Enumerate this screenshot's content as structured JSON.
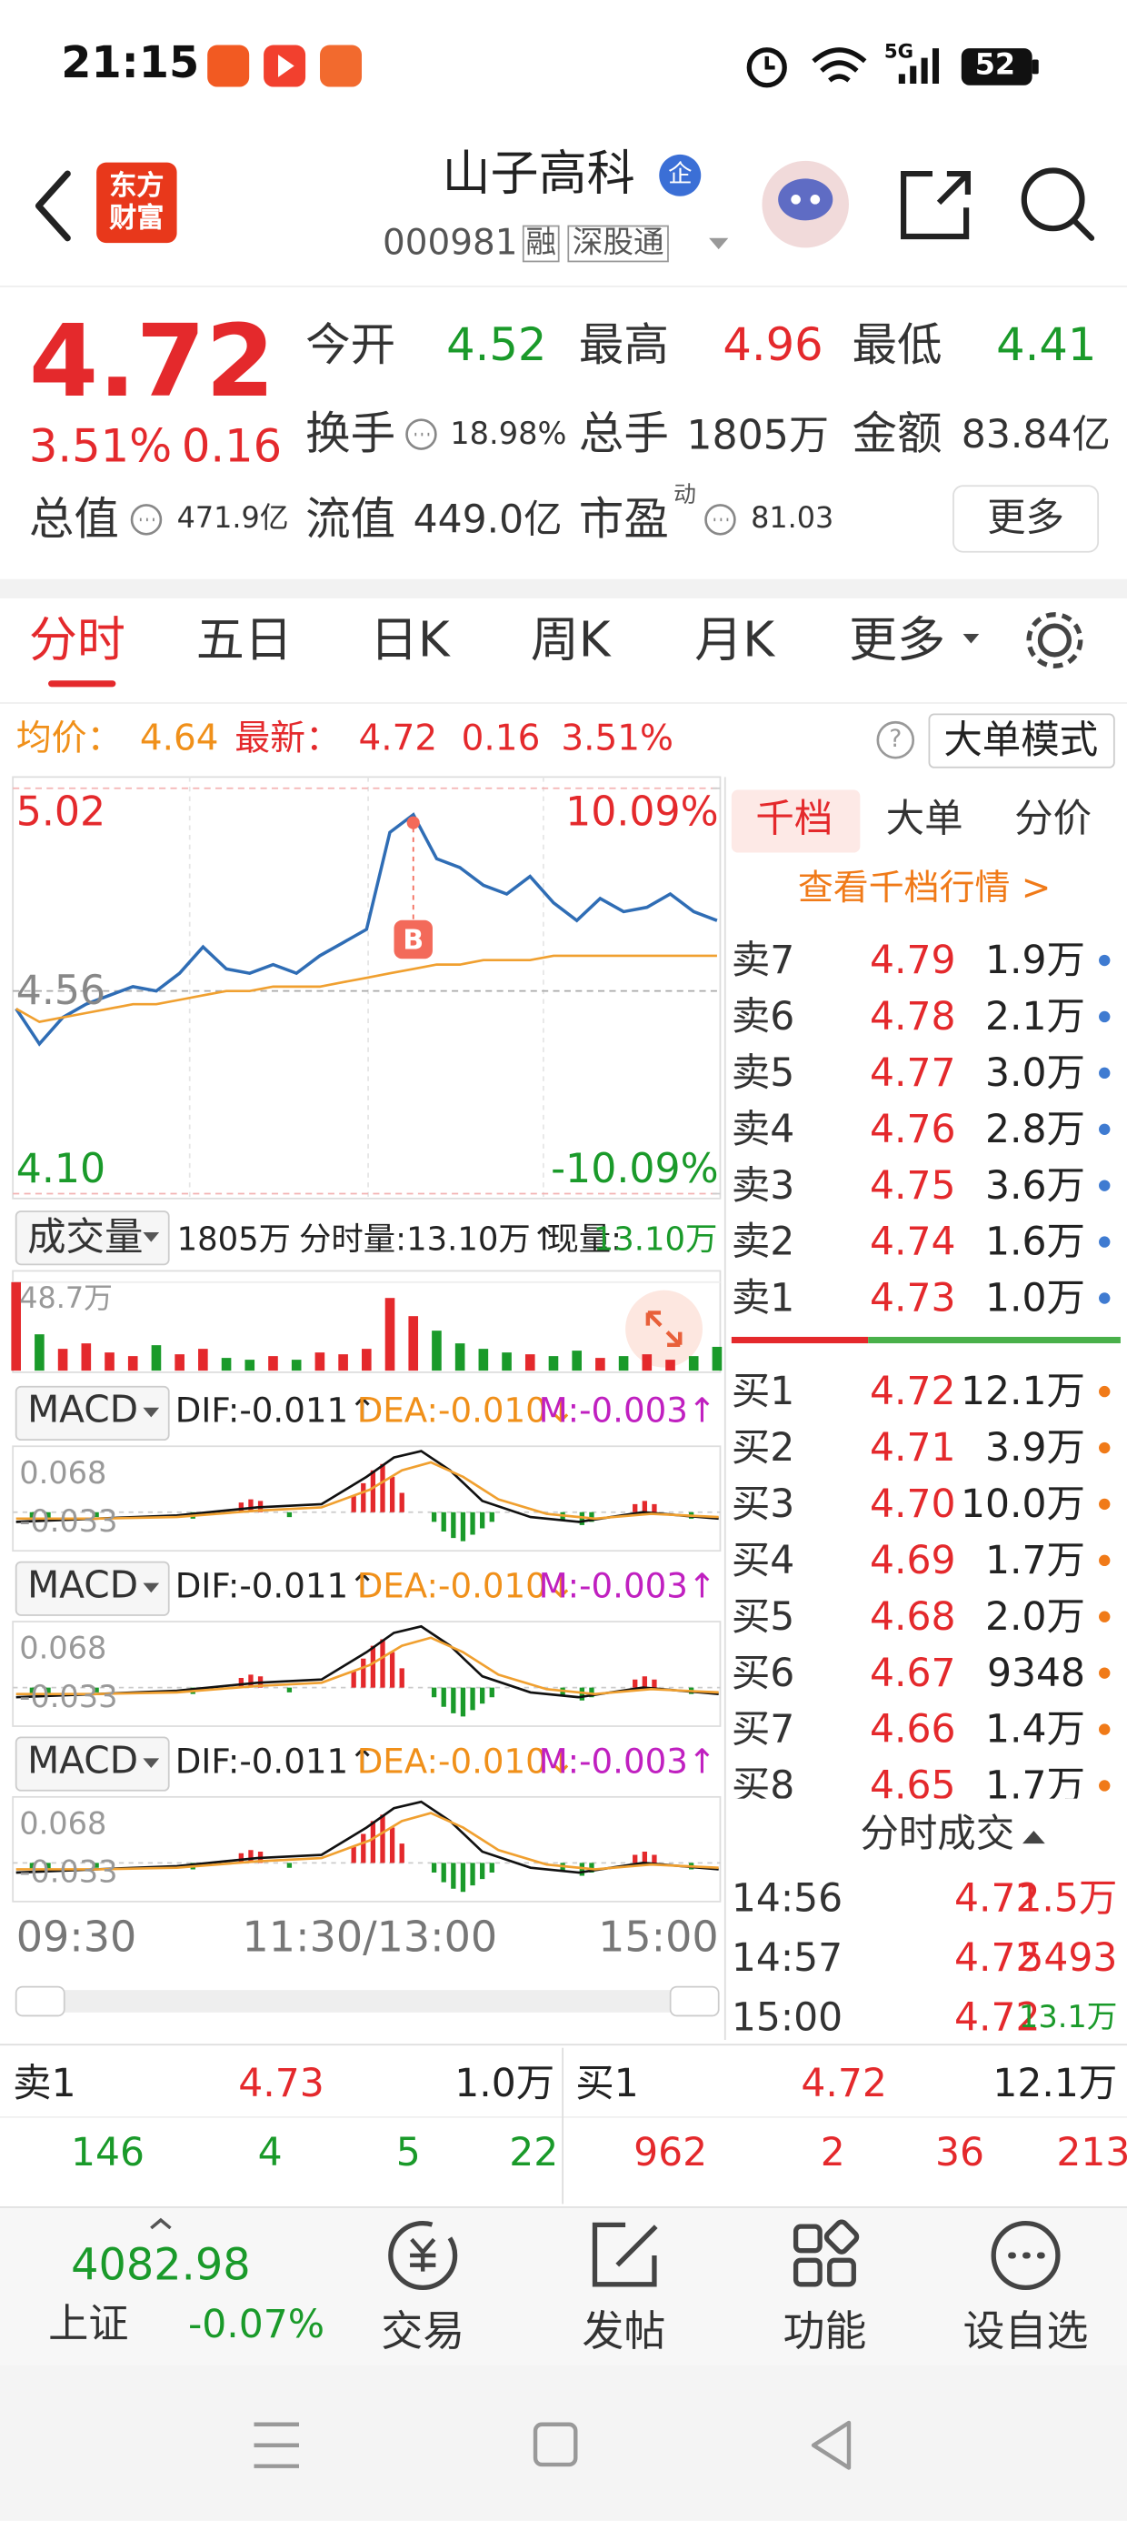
{
  "status_bar": {
    "time": "21:15",
    "network": "5G",
    "battery": "52"
  },
  "header": {
    "logo": "东方财富",
    "title": "山子高科",
    "badge": "企",
    "code": "000981",
    "tags": [
      "融",
      "深股通"
    ]
  },
  "quote": {
    "price": "4.72",
    "change_pct": "3.51%",
    "change": "0.16",
    "stats": [
      {
        "label": "今开",
        "value": "4.52"
      },
      {
        "label": "最高",
        "value": "4.96"
      },
      {
        "label": "最低",
        "value": "4.41"
      },
      {
        "label": "换手",
        "value": "18.98%"
      },
      {
        "label": "总手",
        "value": "1805万"
      },
      {
        "label": "金额",
        "value": "83.84亿"
      },
      {
        "label": "总值",
        "value": "471.9亿"
      },
      {
        "label": "流值",
        "value": "449.0亿"
      },
      {
        "label": "市盈",
        "sup": "动",
        "value": "81.03"
      }
    ],
    "more": "更多"
  },
  "tabs": [
    "分时",
    "五日",
    "日K",
    "周K",
    "月K",
    "更多"
  ],
  "summary_bar": {
    "avg_label": "均价：",
    "avg": "4.64",
    "latest_label": "最新：",
    "latest": "4.72",
    "change": "0.16",
    "change_pct": "3.51%",
    "help": "?",
    "mode": "大单模式"
  },
  "chart_data": [
    {
      "type": "line",
      "series": [
        {
          "color": "#2f6db5",
          "values": [
            4.52,
            4.44,
            4.5,
            4.53,
            4.55,
            4.57,
            4.56,
            4.6,
            4.66,
            4.61,
            4.6,
            4.62,
            4.6,
            4.64,
            4.67,
            4.7,
            4.92,
            4.96,
            4.86,
            4.84,
            4.8,
            4.78,
            4.82,
            4.76,
            4.72,
            4.77,
            4.74,
            4.75,
            4.78,
            4.74,
            4.72
          ]
        },
        {
          "color": "#f0a030",
          "values": [
            4.52,
            4.49,
            4.5,
            4.51,
            4.52,
            4.53,
            4.53,
            4.54,
            4.55,
            4.56,
            4.56,
            4.57,
            4.57,
            4.57,
            4.58,
            4.59,
            4.6,
            4.61,
            4.62,
            4.62,
            4.63,
            4.63,
            4.63,
            4.64,
            4.64,
            4.64,
            4.64,
            4.64,
            4.64,
            4.64,
            4.64
          ]
        }
      ],
      "ylim": [
        4.1,
        5.02
      ],
      "yticks": [
        {
          "value": 4.1,
          "label": "4.10"
        },
        4.56,
        5.02
      ],
      "y2lim": [
        -10.09,
        10.09
      ],
      "y2ticks": [
        {
          "value": -10.09,
          "label": "-10.09%"
        },
        {
          "value": 10.09,
          "label": "10.09%"
        }
      ],
      "annotation": "B",
      "grid": true
    },
    {
      "type": "bar",
      "values": [
        48.7,
        20,
        12,
        15,
        10,
        8,
        14,
        9,
        12,
        7,
        6,
        8,
        6,
        10,
        9,
        12,
        40,
        30,
        22,
        15,
        12,
        10,
        9,
        8,
        11,
        7,
        8,
        9,
        6,
        8,
        13.1
      ],
      "ylim": [
        0,
        48.7
      ],
      "yticks": [
        {
          "value": 48.7,
          "label": "48.7万"
        }
      ],
      "up_color": "#e4292c",
      "down_color": "#1a9a2a"
    }
  ],
  "volume_header": {
    "label": "成交量",
    "total": "1805万",
    "minute_vol": "分时量:13.10万↑",
    "current_label": "现量:",
    "current": "13.10万"
  },
  "macd_panels": [
    {
      "name": "MACD",
      "dif": "DIF:-0.011↑",
      "dea": "DEA:-0.010↓",
      "m": "M:-0.003↑",
      "high": "0.068",
      "low": "-0.033"
    },
    {
      "name": "MACD",
      "dif": "DIF:-0.011↑",
      "dea": "DEA:-0.010↓",
      "m": "M:-0.003↑",
      "high": "0.068",
      "low": "-0.033"
    },
    {
      "name": "MACD",
      "dif": "DIF:-0.011↑",
      "dea": "DEA:-0.010↓",
      "m": "M:-0.003↑",
      "high": "0.068",
      "low": "-0.033"
    }
  ],
  "x_labels": [
    "09:30",
    "11:30/13:00",
    "15:00"
  ],
  "order_book": {
    "tabs": [
      "千档",
      "大单",
      "分价"
    ],
    "link": "查看千档行情 >",
    "asks": [
      {
        "label": "卖7",
        "price": "4.79",
        "volume": "1.9万"
      },
      {
        "label": "卖6",
        "price": "4.78",
        "volume": "2.1万"
      },
      {
        "label": "卖5",
        "price": "4.77",
        "volume": "3.0万"
      },
      {
        "label": "卖4",
        "price": "4.76",
        "volume": "2.8万"
      },
      {
        "label": "卖3",
        "price": "4.75",
        "volume": "3.6万"
      },
      {
        "label": "卖2",
        "price": "4.74",
        "volume": "1.6万"
      },
      {
        "label": "卖1",
        "price": "4.73",
        "volume": "1.0万"
      }
    ],
    "bids": [
      {
        "label": "买1",
        "price": "4.72",
        "volume": "12.1万"
      },
      {
        "label": "买2",
        "price": "4.71",
        "volume": "3.9万"
      },
      {
        "label": "买3",
        "price": "4.70",
        "volume": "10.0万"
      },
      {
        "label": "买4",
        "price": "4.69",
        "volume": "1.7万"
      },
      {
        "label": "买5",
        "price": "4.68",
        "volume": "2.0万"
      },
      {
        "label": "买6",
        "price": "4.67",
        "volume": "9348"
      },
      {
        "label": "买7",
        "price": "4.66",
        "volume": "1.4万"
      },
      {
        "label": "买8",
        "price": "4.65",
        "volume": "1.7万"
      }
    ]
  },
  "trades": {
    "title": "分时成交",
    "rows": [
      {
        "time": "14:56",
        "price": "4.72",
        "volume": "1.5万"
      },
      {
        "time": "14:57",
        "price": "4.72",
        "volume": "5493"
      },
      {
        "time": "15:00",
        "price": "4.72",
        "volume": "13.1万"
      }
    ]
  },
  "bottom_quote": {
    "ask": {
      "label": "卖1",
      "price": "4.73",
      "volume": "1.0万"
    },
    "bid": {
      "label": "买1",
      "price": "4.72",
      "volume": "12.1万"
    },
    "ask_counts": [
      146,
      4,
      5,
      22
    ],
    "bid_counts": [
      962,
      2,
      36,
      213
    ]
  },
  "bottom_nav": {
    "index_value": "4082.98",
    "index_name": "上证",
    "index_change": "-0.07%",
    "items": [
      "交易",
      "发帖",
      "功能",
      "设自选"
    ]
  }
}
